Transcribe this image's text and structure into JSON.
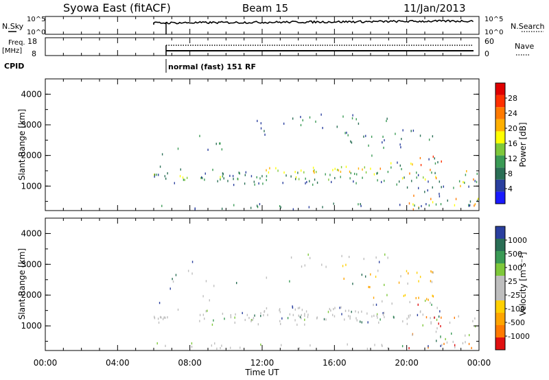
{
  "header": {
    "title": "Syowa East (fitACF)",
    "beam": "Beam 15",
    "date": "11/Jan/2013"
  },
  "noise_panel": {
    "left_label": "N.Sky",
    "right_label": "N.Search",
    "left_ticks": [
      "10^5",
      "10^0"
    ],
    "right_ticks": [
      "10^5",
      "10^0"
    ]
  },
  "freq_panel": {
    "left_label_1": "Freq.",
    "left_label_2": "[MHz]",
    "left_ticks": [
      "18",
      "8"
    ],
    "right_label": "Nave",
    "right_ticks": [
      "60",
      "0"
    ]
  },
  "cpid": {
    "label": "CPID",
    "mode": "normal (fast) 151 RF"
  },
  "colors": {
    "power": [
      "#1a1aff",
      "#2a3f9e",
      "#2a6e55",
      "#3a9a55",
      "#7ec83a",
      "#ffff00",
      "#ffb000",
      "#ff7a00",
      "#ff3000",
      "#e00000"
    ],
    "velocity_pos": [
      "#2a3f9e",
      "#2a6e55",
      "#3a9a55",
      "#7ec83a"
    ],
    "velocity_neg": [
      "#ffd000",
      "#ffa500",
      "#ff7a00",
      "#e01010"
    ],
    "ground": "#bebebe"
  },
  "chart_data": [
    {
      "type": "heatmap",
      "name": "power",
      "ylabel": "Slant Range [km]",
      "ylim": [
        200,
        4500
      ],
      "yticks": [
        "1000",
        "2000",
        "3000",
        "4000"
      ],
      "xlim": [
        0,
        24
      ],
      "colorbar_label": "Power [dB]",
      "colorbar_ticks": [
        "4",
        "8",
        "12",
        "16",
        "20",
        "24",
        "28"
      ],
      "colorbar_range": [
        0,
        30
      ]
    },
    {
      "type": "heatmap",
      "name": "velocity",
      "ylabel": "Slant Range [km]",
      "ylim": [
        200,
        4500
      ],
      "yticks": [
        "1000",
        "2000",
        "3000",
        "4000"
      ],
      "xlim": [
        0,
        24
      ],
      "colorbar_label": "Velocity [m s⁻¹]",
      "colorbar_ticks": [
        "1000",
        "500",
        "100",
        "25",
        "-25",
        "-100",
        "-500",
        "-1000"
      ]
    }
  ],
  "xaxis": {
    "label": "Time UT",
    "ticks": [
      "00:00",
      "04:00",
      "08:00",
      "12:00",
      "16:00",
      "20:00",
      "00:00"
    ]
  }
}
